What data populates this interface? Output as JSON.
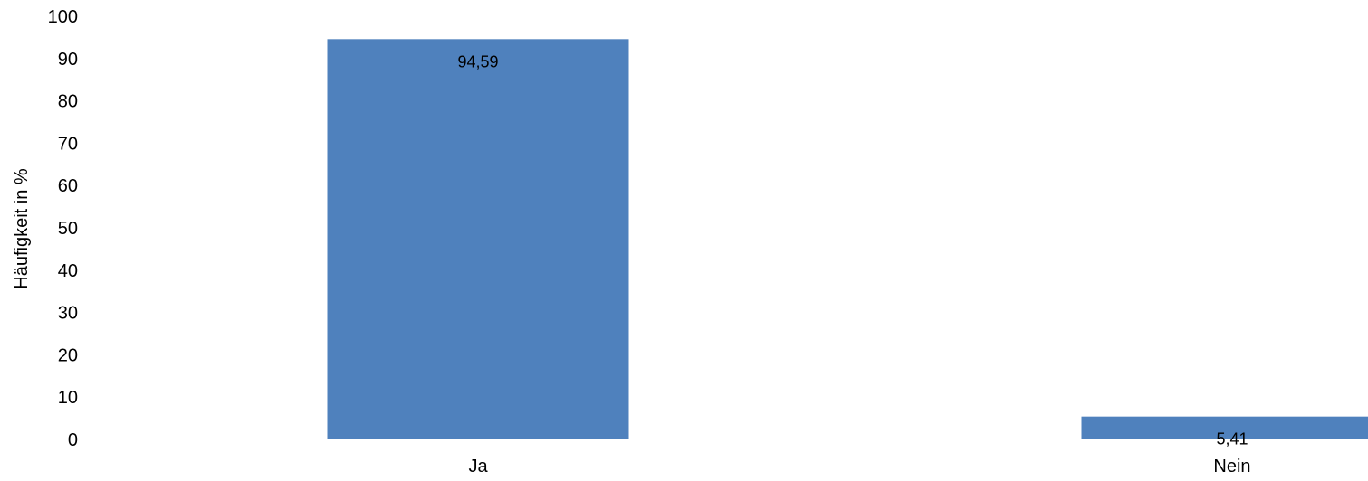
{
  "chart_data": {
    "type": "bar",
    "categories": [
      "Ja",
      "Nein"
    ],
    "values": [
      94.59,
      5.41
    ],
    "value_labels": [
      "94,59",
      "5,41"
    ],
    "title": "",
    "xlabel": "",
    "ylabel": "Häufigkeit in %",
    "ylim": [
      0,
      100
    ],
    "yticks": [
      "0",
      "10",
      "20",
      "30",
      "40",
      "50",
      "60",
      "70",
      "80",
      "90",
      "100"
    ],
    "ytick_values": [
      0,
      10,
      20,
      30,
      40,
      50,
      60,
      70,
      80,
      90,
      100
    ],
    "grid": false,
    "legend": "none",
    "bar_color": "#4f81bd"
  }
}
